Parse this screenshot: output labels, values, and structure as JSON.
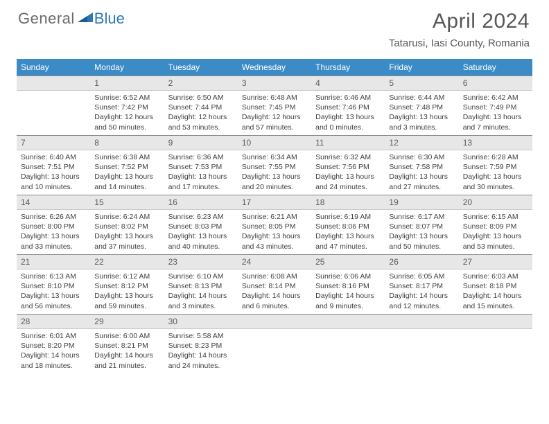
{
  "logo": {
    "text_gray": "General",
    "text_blue": "Blue"
  },
  "title": "April 2024",
  "location": "Tatarusi, Iasi County, Romania",
  "colors": {
    "header_bg": "#3b8bc7",
    "header_text": "#ffffff",
    "daynum_bg": "#e7e7e7",
    "daynum_text": "#5a5a5a",
    "body_text": "#404040",
    "logo_gray": "#6a6a6a",
    "logo_blue": "#2f78b8"
  },
  "day_headers": [
    "Sunday",
    "Monday",
    "Tuesday",
    "Wednesday",
    "Thursday",
    "Friday",
    "Saturday"
  ],
  "weeks": [
    [
      {
        "n": "",
        "sr": "",
        "ss": "",
        "dl": ""
      },
      {
        "n": "1",
        "sr": "Sunrise: 6:52 AM",
        "ss": "Sunset: 7:42 PM",
        "dl": "Daylight: 12 hours and 50 minutes."
      },
      {
        "n": "2",
        "sr": "Sunrise: 6:50 AM",
        "ss": "Sunset: 7:44 PM",
        "dl": "Daylight: 12 hours and 53 minutes."
      },
      {
        "n": "3",
        "sr": "Sunrise: 6:48 AM",
        "ss": "Sunset: 7:45 PM",
        "dl": "Daylight: 12 hours and 57 minutes."
      },
      {
        "n": "4",
        "sr": "Sunrise: 6:46 AM",
        "ss": "Sunset: 7:46 PM",
        "dl": "Daylight: 13 hours and 0 minutes."
      },
      {
        "n": "5",
        "sr": "Sunrise: 6:44 AM",
        "ss": "Sunset: 7:48 PM",
        "dl": "Daylight: 13 hours and 3 minutes."
      },
      {
        "n": "6",
        "sr": "Sunrise: 6:42 AM",
        "ss": "Sunset: 7:49 PM",
        "dl": "Daylight: 13 hours and 7 minutes."
      }
    ],
    [
      {
        "n": "7",
        "sr": "Sunrise: 6:40 AM",
        "ss": "Sunset: 7:51 PM",
        "dl": "Daylight: 13 hours and 10 minutes."
      },
      {
        "n": "8",
        "sr": "Sunrise: 6:38 AM",
        "ss": "Sunset: 7:52 PM",
        "dl": "Daylight: 13 hours and 14 minutes."
      },
      {
        "n": "9",
        "sr": "Sunrise: 6:36 AM",
        "ss": "Sunset: 7:53 PM",
        "dl": "Daylight: 13 hours and 17 minutes."
      },
      {
        "n": "10",
        "sr": "Sunrise: 6:34 AM",
        "ss": "Sunset: 7:55 PM",
        "dl": "Daylight: 13 hours and 20 minutes."
      },
      {
        "n": "11",
        "sr": "Sunrise: 6:32 AM",
        "ss": "Sunset: 7:56 PM",
        "dl": "Daylight: 13 hours and 24 minutes."
      },
      {
        "n": "12",
        "sr": "Sunrise: 6:30 AM",
        "ss": "Sunset: 7:58 PM",
        "dl": "Daylight: 13 hours and 27 minutes."
      },
      {
        "n": "13",
        "sr": "Sunrise: 6:28 AM",
        "ss": "Sunset: 7:59 PM",
        "dl": "Daylight: 13 hours and 30 minutes."
      }
    ],
    [
      {
        "n": "14",
        "sr": "Sunrise: 6:26 AM",
        "ss": "Sunset: 8:00 PM",
        "dl": "Daylight: 13 hours and 33 minutes."
      },
      {
        "n": "15",
        "sr": "Sunrise: 6:24 AM",
        "ss": "Sunset: 8:02 PM",
        "dl": "Daylight: 13 hours and 37 minutes."
      },
      {
        "n": "16",
        "sr": "Sunrise: 6:23 AM",
        "ss": "Sunset: 8:03 PM",
        "dl": "Daylight: 13 hours and 40 minutes."
      },
      {
        "n": "17",
        "sr": "Sunrise: 6:21 AM",
        "ss": "Sunset: 8:05 PM",
        "dl": "Daylight: 13 hours and 43 minutes."
      },
      {
        "n": "18",
        "sr": "Sunrise: 6:19 AM",
        "ss": "Sunset: 8:06 PM",
        "dl": "Daylight: 13 hours and 47 minutes."
      },
      {
        "n": "19",
        "sr": "Sunrise: 6:17 AM",
        "ss": "Sunset: 8:07 PM",
        "dl": "Daylight: 13 hours and 50 minutes."
      },
      {
        "n": "20",
        "sr": "Sunrise: 6:15 AM",
        "ss": "Sunset: 8:09 PM",
        "dl": "Daylight: 13 hours and 53 minutes."
      }
    ],
    [
      {
        "n": "21",
        "sr": "Sunrise: 6:13 AM",
        "ss": "Sunset: 8:10 PM",
        "dl": "Daylight: 13 hours and 56 minutes."
      },
      {
        "n": "22",
        "sr": "Sunrise: 6:12 AM",
        "ss": "Sunset: 8:12 PM",
        "dl": "Daylight: 13 hours and 59 minutes."
      },
      {
        "n": "23",
        "sr": "Sunrise: 6:10 AM",
        "ss": "Sunset: 8:13 PM",
        "dl": "Daylight: 14 hours and 3 minutes."
      },
      {
        "n": "24",
        "sr": "Sunrise: 6:08 AM",
        "ss": "Sunset: 8:14 PM",
        "dl": "Daylight: 14 hours and 6 minutes."
      },
      {
        "n": "25",
        "sr": "Sunrise: 6:06 AM",
        "ss": "Sunset: 8:16 PM",
        "dl": "Daylight: 14 hours and 9 minutes."
      },
      {
        "n": "26",
        "sr": "Sunrise: 6:05 AM",
        "ss": "Sunset: 8:17 PM",
        "dl": "Daylight: 14 hours and 12 minutes."
      },
      {
        "n": "27",
        "sr": "Sunrise: 6:03 AM",
        "ss": "Sunset: 8:18 PM",
        "dl": "Daylight: 14 hours and 15 minutes."
      }
    ],
    [
      {
        "n": "28",
        "sr": "Sunrise: 6:01 AM",
        "ss": "Sunset: 8:20 PM",
        "dl": "Daylight: 14 hours and 18 minutes."
      },
      {
        "n": "29",
        "sr": "Sunrise: 6:00 AM",
        "ss": "Sunset: 8:21 PM",
        "dl": "Daylight: 14 hours and 21 minutes."
      },
      {
        "n": "30",
        "sr": "Sunrise: 5:58 AM",
        "ss": "Sunset: 8:23 PM",
        "dl": "Daylight: 14 hours and 24 minutes."
      },
      {
        "n": "",
        "sr": "",
        "ss": "",
        "dl": ""
      },
      {
        "n": "",
        "sr": "",
        "ss": "",
        "dl": ""
      },
      {
        "n": "",
        "sr": "",
        "ss": "",
        "dl": ""
      },
      {
        "n": "",
        "sr": "",
        "ss": "",
        "dl": ""
      }
    ]
  ]
}
